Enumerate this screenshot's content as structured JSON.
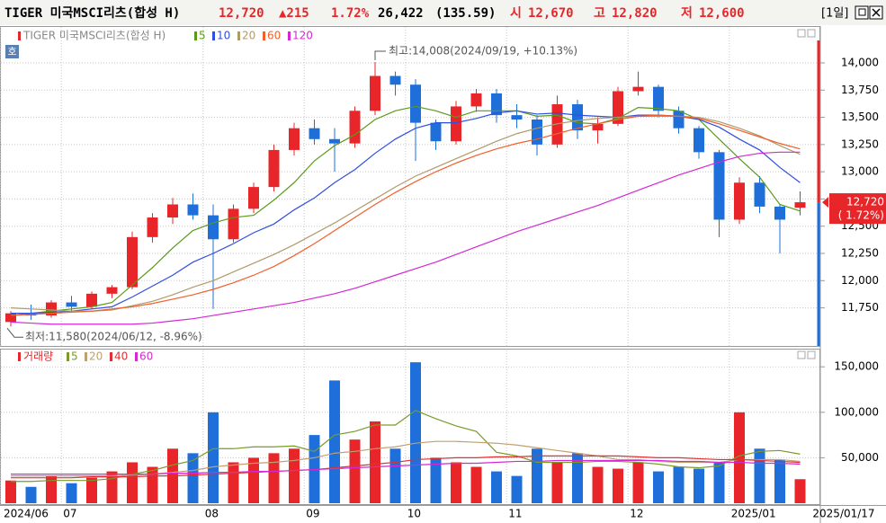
{
  "header": {
    "name": "TIGER 미국MSCI리츠(합성 H)",
    "price": "12,720",
    "change": "▲215",
    "change_pct": "1.72%",
    "volume": "26,422",
    "amount": "(135.59)",
    "open_label": "시",
    "open": "12,670",
    "high_label": "고",
    "high": "12,820",
    "low_label": "저",
    "low": "12,600",
    "period": "[1일]"
  },
  "chart_data": [
    {
      "type": "candlestick",
      "legend_title": "TIGER 미국MSCI리츠(합성 H)",
      "badge": "호",
      "categories": [
        "2024/06",
        null,
        null,
        "07",
        null,
        null,
        null,
        null,
        null,
        null,
        "08",
        null,
        null,
        null,
        null,
        "09",
        null,
        null,
        null,
        null,
        "10",
        null,
        null,
        null,
        null,
        "11",
        null,
        null,
        null,
        null,
        null,
        "12",
        null,
        null,
        null,
        null,
        "2025/01",
        null,
        null,
        null
      ],
      "open": [
        11620,
        11700,
        11680,
        11800,
        11760,
        11880,
        11940,
        12400,
        12580,
        12700,
        12600,
        12380,
        12660,
        12860,
        13200,
        13400,
        13300,
        13260,
        13560,
        13880,
        13800,
        13450,
        13280,
        13600,
        13720,
        13520,
        13480,
        13250,
        13620,
        13380,
        13440,
        13740,
        13780,
        13560,
        13400,
        13180,
        12560,
        12900,
        12680,
        12670
      ],
      "high": [
        11720,
        11780,
        11820,
        11860,
        11900,
        11960,
        12450,
        12620,
        12760,
        12800,
        12700,
        12700,
        12900,
        13250,
        13450,
        13480,
        13400,
        13600,
        14008,
        13920,
        13850,
        13480,
        13650,
        13760,
        13760,
        13620,
        13520,
        13700,
        13660,
        13500,
        13780,
        13920,
        13800,
        13600,
        13420,
        13200,
        12950,
        12960,
        12700,
        12820
      ],
      "low": [
        11580,
        11640,
        11660,
        11720,
        11740,
        11840,
        11920,
        12350,
        12520,
        12560,
        11740,
        12350,
        12620,
        12820,
        13150,
        13250,
        13000,
        13220,
        13520,
        13700,
        13100,
        13200,
        13250,
        13550,
        13450,
        13400,
        13150,
        13220,
        13300,
        13260,
        13420,
        13700,
        13500,
        13350,
        13120,
        12400,
        12520,
        12620,
        12250,
        12600
      ],
      "close": [
        11700,
        11680,
        11800,
        11760,
        11880,
        11940,
        12400,
        12580,
        12700,
        12600,
        12380,
        12660,
        12860,
        13200,
        13400,
        13300,
        13260,
        13560,
        13880,
        13800,
        13450,
        13280,
        13600,
        13720,
        13520,
        13480,
        13250,
        13620,
        13380,
        13440,
        13740,
        13780,
        13560,
        13400,
        13180,
        12560,
        12900,
        12680,
        12560,
        12720
      ],
      "up_color": "#e8262a",
      "down_color": "#1e6fd9",
      "series": [
        {
          "name": "5",
          "color": "#5a9a1a",
          "values": [
            11680,
            11700,
            11720,
            11740,
            11760,
            11800,
            11960,
            12120,
            12300,
            12460,
            12530,
            12580,
            12600,
            12740,
            12900,
            13100,
            13240,
            13340,
            13480,
            13560,
            13600,
            13560,
            13500,
            13560,
            13560,
            13560,
            13510,
            13520,
            13450,
            13440,
            13490,
            13590,
            13580,
            13560,
            13480,
            13300,
            13120,
            12950,
            12700,
            12640
          ]
        },
        {
          "name": "10",
          "color": "#2f4fe0",
          "values": [
            11700,
            11700,
            11710,
            11720,
            11740,
            11760,
            11850,
            11950,
            12050,
            12170,
            12250,
            12340,
            12440,
            12520,
            12650,
            12760,
            12900,
            13020,
            13170,
            13300,
            13400,
            13450,
            13450,
            13490,
            13540,
            13560,
            13530,
            13540,
            13520,
            13510,
            13500,
            13520,
            13520,
            13510,
            13480,
            13410,
            13300,
            13200,
            13040,
            12900
          ]
        },
        {
          "name": "20",
          "color": "#b09a6a",
          "values": [
            11750,
            11740,
            11730,
            11720,
            11720,
            11730,
            11770,
            11810,
            11870,
            11940,
            12000,
            12080,
            12160,
            12240,
            12330,
            12430,
            12530,
            12640,
            12750,
            12860,
            12960,
            13040,
            13120,
            13200,
            13280,
            13350,
            13400,
            13440,
            13470,
            13490,
            13500,
            13510,
            13510,
            13510,
            13500,
            13460,
            13400,
            13330,
            13240,
            13160
          ]
        },
        {
          "name": "60",
          "color": "#f0602a",
          "values": [
            11680,
            11690,
            11700,
            11710,
            11720,
            11740,
            11760,
            11790,
            11830,
            11870,
            11920,
            11980,
            12050,
            12130,
            12230,
            12340,
            12460,
            12580,
            12700,
            12810,
            12910,
            13000,
            13080,
            13150,
            13210,
            13260,
            13300,
            13350,
            13400,
            13440,
            13480,
            13510,
            13520,
            13510,
            13490,
            13440,
            13380,
            13320,
            13260,
            13210
          ]
        },
        {
          "name": "120",
          "color": "#d428d4",
          "values": [
            11620,
            11610,
            11600,
            11600,
            11600,
            11600,
            11600,
            11610,
            11630,
            11650,
            11680,
            11710,
            11740,
            11770,
            11800,
            11840,
            11880,
            11930,
            11990,
            12050,
            12110,
            12170,
            12240,
            12310,
            12380,
            12450,
            12510,
            12570,
            12630,
            12690,
            12760,
            12830,
            12900,
            12970,
            13030,
            13090,
            13140,
            13170,
            13180,
            13180
          ]
        }
      ],
      "ylim": [
        11400,
        14330
      ],
      "yticks": [
        {
          "value": 11750,
          "label": "11,750"
        },
        {
          "value": 12000,
          "label": "12,000"
        },
        {
          "value": 12250,
          "label": "12,250"
        },
        {
          "value": 12500,
          "label": "12,500"
        },
        {
          "value": 12750,
          "label": "12,750"
        },
        {
          "value": 13000,
          "label": "13,000"
        },
        {
          "value": 13250,
          "label": "13,250"
        },
        {
          "value": 13500,
          "label": "13,500"
        },
        {
          "value": 13750,
          "label": "13,750"
        },
        {
          "value": 14000,
          "label": "14,000"
        }
      ],
      "high_note": "최고:14,008(2024/09/19, +10.13%)",
      "low_note": "최저:11,580(2024/06/12, -8.96%)",
      "price_tag": {
        "value": 12720,
        "label": "12,720",
        "change": "( 1.72%)"
      },
      "last_date": "2025/01/17",
      "grid": true
    },
    {
      "type": "bar",
      "legend_title": "거래량",
      "values": [
        25000,
        18000,
        30000,
        22000,
        28000,
        35000,
        45000,
        40000,
        60000,
        55000,
        100000,
        45000,
        50000,
        55000,
        60000,
        75000,
        135000,
        70000,
        90000,
        60000,
        155000,
        50000,
        45000,
        40000,
        35000,
        30000,
        60000,
        45000,
        55000,
        40000,
        38000,
        45000,
        35000,
        40000,
        38000,
        45000,
        100000,
        60000,
        48000,
        26422
      ],
      "series": [
        {
          "name": "5",
          "color": "#7a9a2a",
          "values": [
            24000,
            24000,
            25000,
            25000,
            25000,
            27000,
            32000,
            36000,
            42000,
            47000,
            60000,
            60000,
            62000,
            62000,
            63000,
            57000,
            75000,
            79000,
            86000,
            86000,
            102000,
            93000,
            85000,
            79000,
            56000,
            52000,
            45000,
            45000,
            45000,
            46000,
            46000,
            45000,
            43000,
            40000,
            39000,
            41000,
            52000,
            57000,
            58000,
            54000
          ]
        },
        {
          "name": "20",
          "color": "#c0a070",
          "values": [
            30000,
            30000,
            30000,
            30000,
            30000,
            30000,
            31000,
            32000,
            34000,
            36000,
            40000,
            42000,
            44000,
            45000,
            47000,
            50000,
            55000,
            57000,
            60000,
            62000,
            66000,
            68000,
            68000,
            67000,
            66000,
            64000,
            61000,
            58000,
            55000,
            52000,
            48000,
            48000,
            46000,
            45000,
            45000,
            45000,
            48000,
            48000,
            48000,
            46000
          ]
        },
        {
          "name": "40",
          "color": "#e03030",
          "values": [
            28000,
            28000,
            28000,
            28000,
            29000,
            29000,
            29000,
            30000,
            30000,
            31000,
            32000,
            33000,
            34000,
            35000,
            36000,
            37000,
            39000,
            41000,
            43000,
            45000,
            48000,
            49000,
            50000,
            50000,
            51000,
            51000,
            52000,
            52000,
            52000,
            52000,
            52000,
            51000,
            50000,
            50000,
            49000,
            48000,
            48000,
            47000,
            46000,
            45000
          ]
        },
        {
          "name": "60",
          "color": "#d428d4",
          "values": [
            32000,
            32000,
            32000,
            32000,
            32000,
            32000,
            32000,
            32000,
            33000,
            33000,
            34000,
            34000,
            35000,
            35000,
            36000,
            37000,
            38000,
            39000,
            40000,
            41000,
            42000,
            43000,
            44000,
            44000,
            45000,
            46000,
            46000,
            47000,
            47000,
            47000,
            47000,
            47000,
            47000,
            46000,
            46000,
            45000,
            45000,
            44000,
            44000,
            43000
          ]
        }
      ],
      "ylim": [
        0,
        168000
      ],
      "yticks": [
        {
          "value": 50000,
          "label": "50,000"
        },
        {
          "value": 100000,
          "label": "100,000"
        },
        {
          "value": 150000,
          "label": "150,000"
        }
      ],
      "grid": true
    }
  ]
}
